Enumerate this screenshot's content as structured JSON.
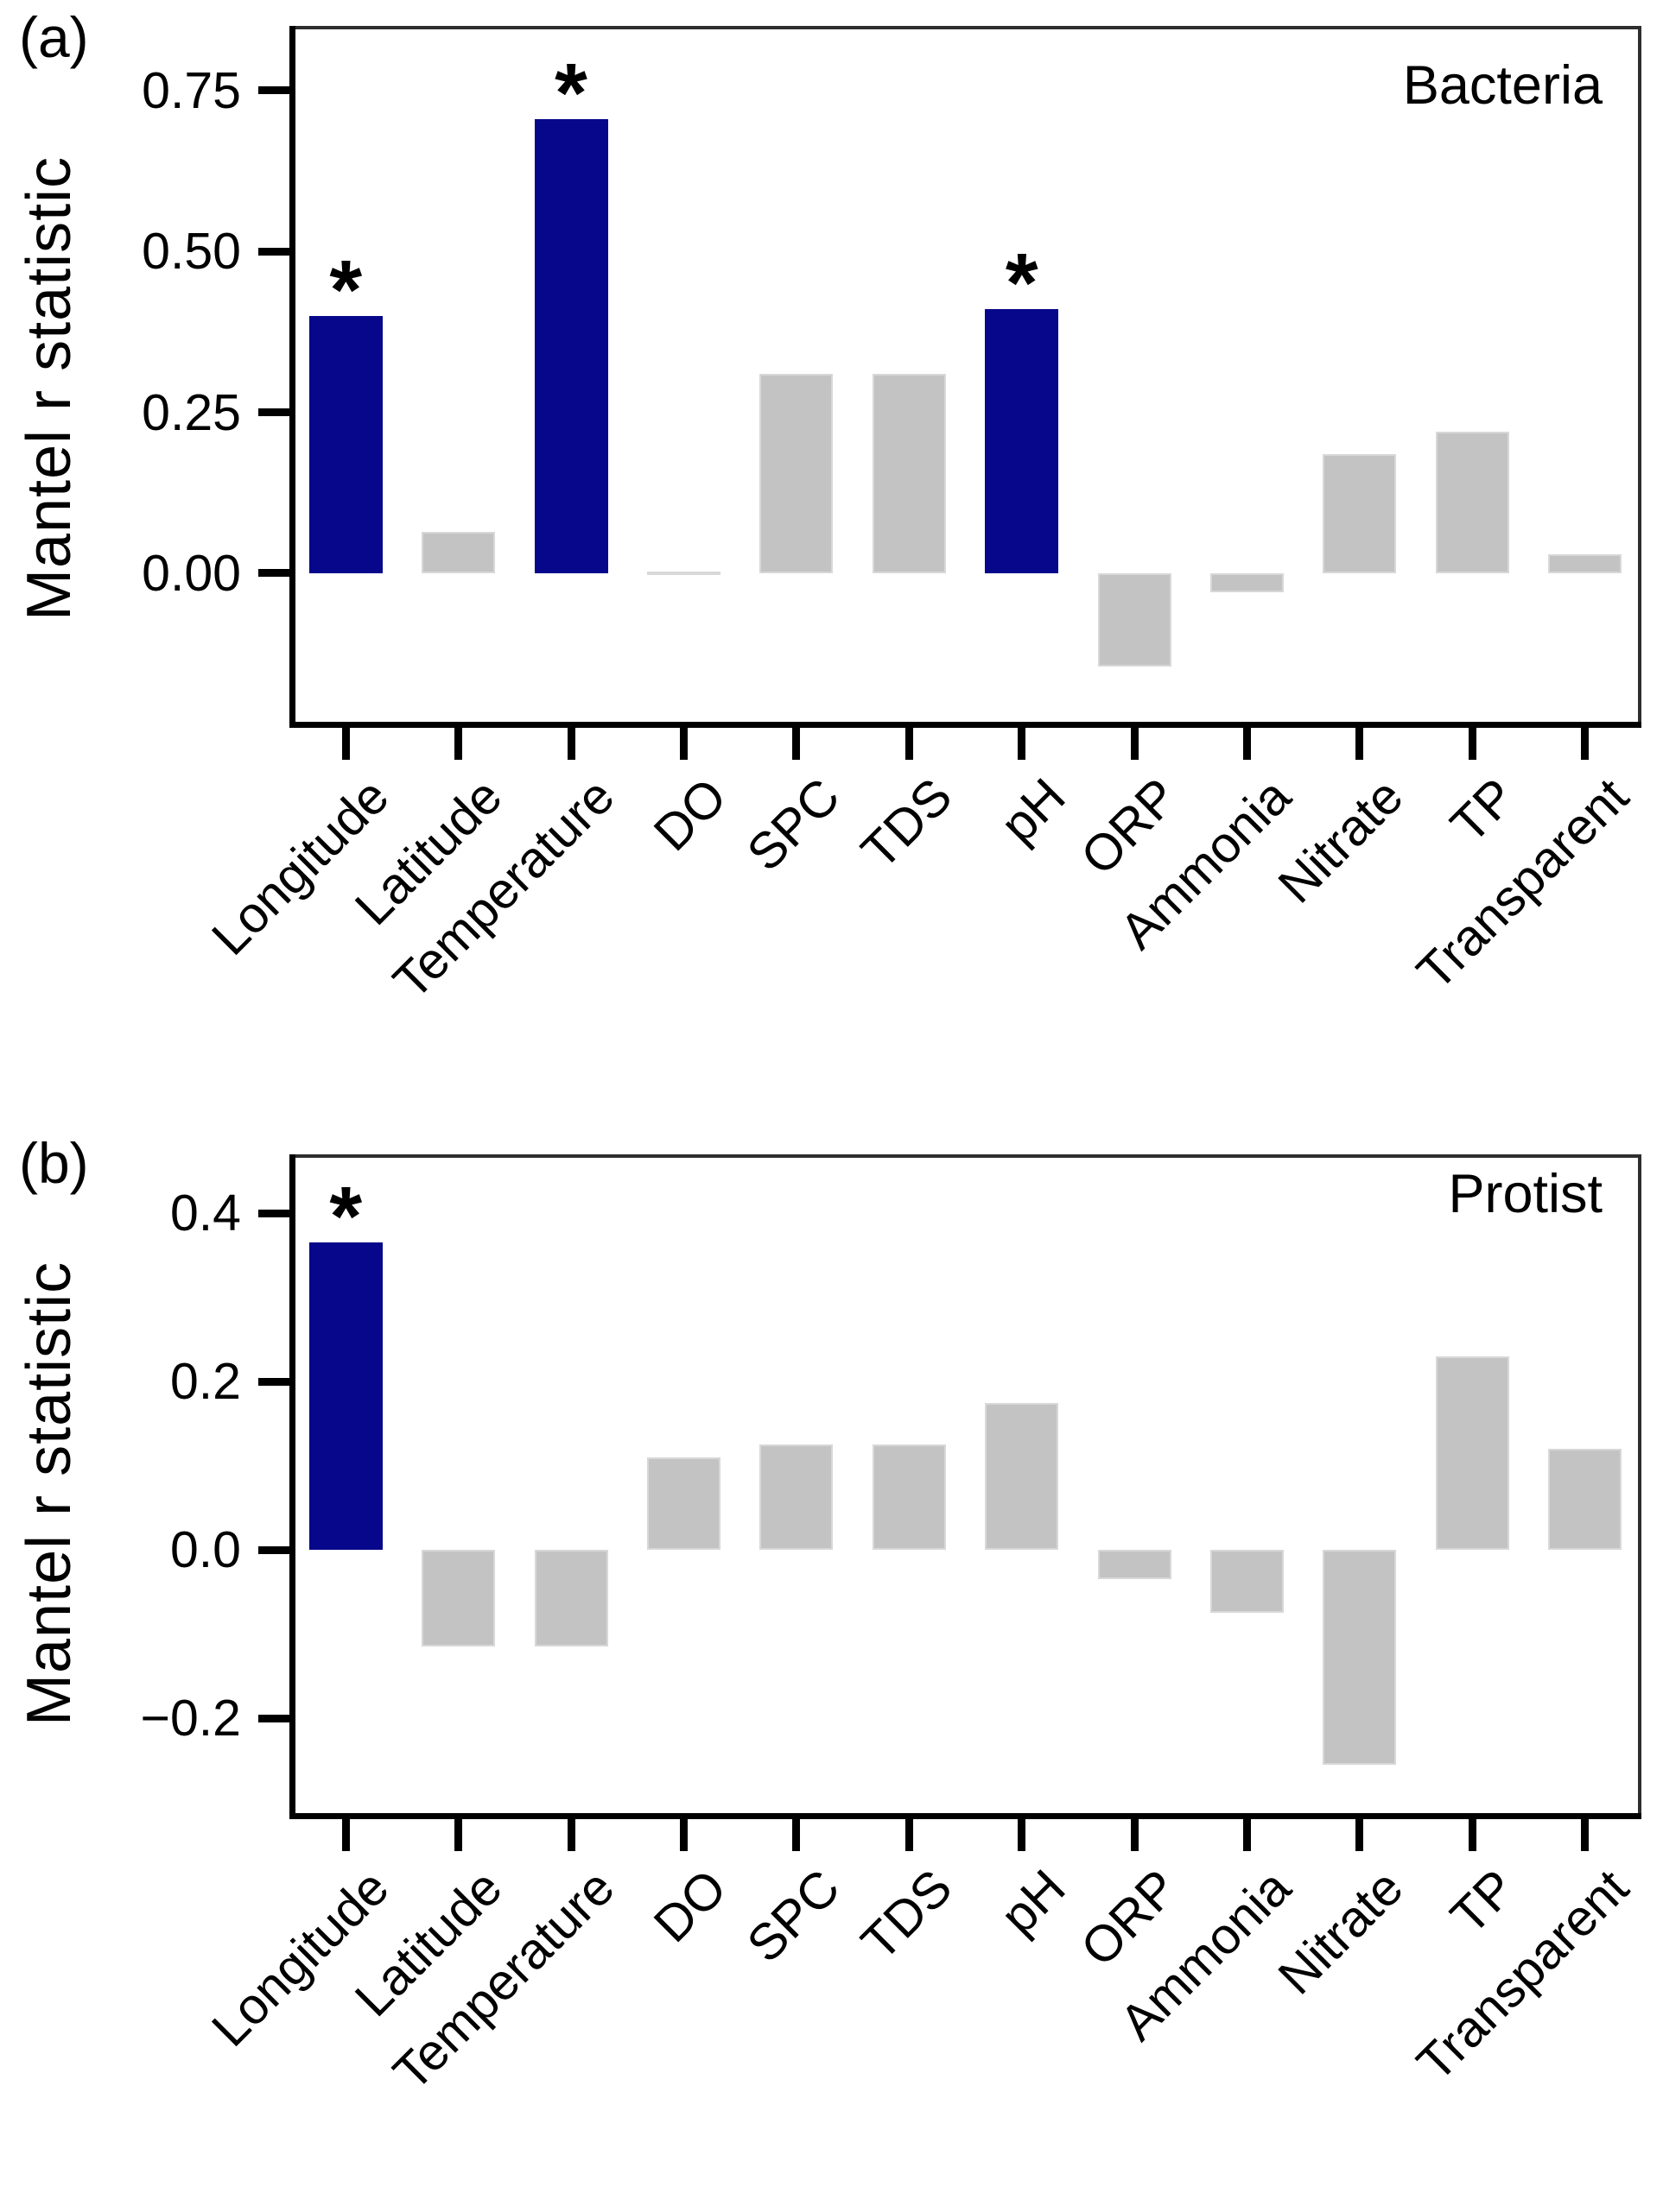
{
  "figure": {
    "type": "two-panel bar figure",
    "significance_marker": "*",
    "colors": {
      "significant_bar": "#07078b",
      "nonsignificant_bar": "#c3c3c3",
      "bar_outline": "#d8d8d8",
      "axis": "#000000",
      "background": "#ffffff"
    }
  },
  "chart_data": [
    {
      "type": "bar",
      "panel": "(a)",
      "title": "Bacteria",
      "ylabel": "Mantel r statistic",
      "categories": [
        "Longitude",
        "Latitude",
        "Temperature",
        "DO",
        "SPC",
        "TDS",
        "pH",
        "ORP",
        "Ammonia",
        "Nitrate",
        "TP",
        "Transparent"
      ],
      "values": [
        0.4,
        0.065,
        0.705,
        0.003,
        0.31,
        0.31,
        0.41,
        -0.145,
        -0.03,
        0.185,
        0.22,
        0.03
      ],
      "significant": [
        true,
        false,
        true,
        false,
        false,
        false,
        true,
        false,
        false,
        false,
        false,
        false
      ],
      "significant_categories": [
        "Longitude",
        "Temperature",
        "pH"
      ],
      "annotation": "asterisk above significant bars",
      "ticks": [
        0.75,
        0.5,
        0.25,
        0.0
      ],
      "tick_labels": [
        "0.75",
        "0.50",
        "0.25",
        "0.00"
      ],
      "ylim": [
        -0.24,
        0.85
      ],
      "grid": false,
      "legend": false
    },
    {
      "type": "bar",
      "panel": "(b)",
      "title": "Protist",
      "ylabel": "Mantel r statistic",
      "categories": [
        "Longitude",
        "Latitude",
        "Temperature",
        "DO",
        "SPC",
        "TDS",
        "pH",
        "ORP",
        "Ammonia",
        "Nitrate",
        "TP",
        "Transparent"
      ],
      "values": [
        0.365,
        -0.115,
        -0.115,
        0.11,
        0.125,
        0.125,
        0.175,
        -0.035,
        -0.075,
        -0.255,
        0.23,
        0.12
      ],
      "significant": [
        true,
        false,
        false,
        false,
        false,
        false,
        false,
        false,
        false,
        false,
        false,
        false
      ],
      "significant_categories": [
        "Longitude"
      ],
      "annotation": "asterisk above significant bars",
      "ticks": [
        0.4,
        0.2,
        0.0,
        -0.2
      ],
      "tick_labels": [
        "0.4",
        "0.2",
        "0.0",
        "−0.2"
      ],
      "ylim": [
        -0.32,
        0.47
      ],
      "grid": false,
      "legend": false
    }
  ]
}
